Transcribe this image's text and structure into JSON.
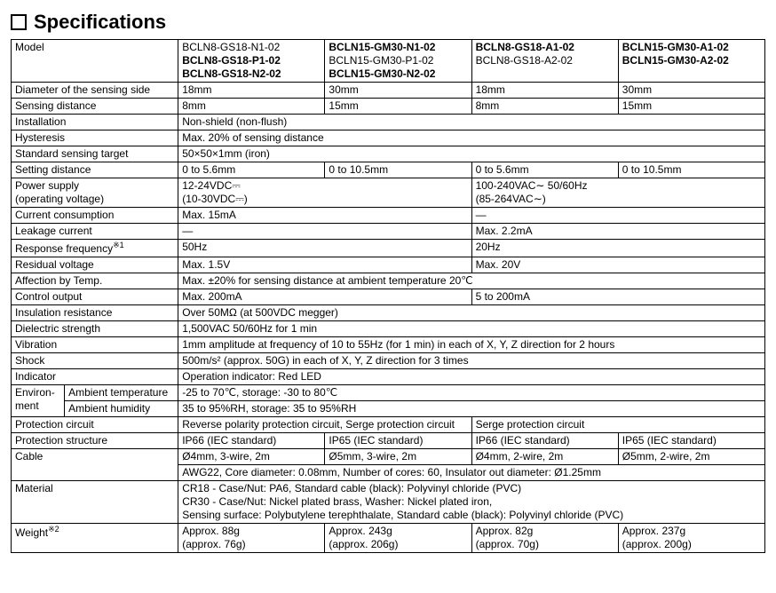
{
  "title": "Specifications",
  "headers": {
    "model_label": "Model",
    "col1_l1": "BCLN8-GS18-N1-02",
    "col1_l2": "BCLN8-GS18-P1-02",
    "col1_l3": "BCLN8-GS18-N2-02",
    "col2_l1": "BCLN15-GM30-N1-02",
    "col2_l2": "BCLN15-GM30-P1-02",
    "col2_l3": "BCLN15-GM30-N2-02",
    "col3_l1": "BCLN8-GS18-A1-02",
    "col3_l2": "BCLN8-GS18-A2-02",
    "col4_l1": "BCLN15-GM30-A1-02",
    "col4_l2": "BCLN15-GM30-A2-02"
  },
  "rows": {
    "diameter_label": "Diameter of the sensing side",
    "diameter_c1": "18mm",
    "diameter_c2": "30mm",
    "diameter_c3": "18mm",
    "diameter_c4": "30mm",
    "sensing_label": "Sensing distance",
    "sensing_c1": "8mm",
    "sensing_c2": "15mm",
    "sensing_c3": "8mm",
    "sensing_c4": "15mm",
    "install_label": "Installation",
    "install_val": "Non-shield (non-flush)",
    "hyst_label": "Hysteresis",
    "hyst_val": "Max. 20% of sensing distance",
    "target_label": "Standard sensing target",
    "target_val": "50×50×1mm (iron)",
    "setdist_label": "Setting distance",
    "setdist_c1": "0 to 5.6mm",
    "setdist_c2": "0 to 10.5mm",
    "setdist_c3": "0 to 5.6mm",
    "setdist_c4": "0 to 10.5mm",
    "power_label_l1": "Power supply",
    "power_label_l2": "(operating voltage)",
    "power_left_l1": "12-24VDC⎓",
    "power_left_l2": "(10-30VDC⎓)",
    "power_right_l1": "100-240VAC∼ 50/60Hz",
    "power_right_l2": "(85-264VAC∼)",
    "current_label": "Current consumption",
    "current_left": "Max. 15mA",
    "current_right": "—",
    "leak_label": "Leakage current",
    "leak_left": "—",
    "leak_right": "Max. 2.2mA",
    "resp_label_a": "Response frequency",
    "resp_sup": "※1",
    "resp_left": "50Hz",
    "resp_right": "20Hz",
    "residual_label": "Residual voltage",
    "residual_left": "Max. 1.5V",
    "residual_right": "Max. 20V",
    "temp_label": "Affection by Temp.",
    "temp_val": "Max. ±20% for sensing distance at ambient temperature 20℃",
    "ctrl_label": "Control output",
    "ctrl_left": "Max. 200mA",
    "ctrl_right": "5 to 200mA",
    "insul_label": "Insulation resistance",
    "insul_val": "Over 50MΩ (at 500VDC megger)",
    "diel_label": "Dielectric strength",
    "diel_val": "1,500VAC 50/60Hz for 1 min",
    "vib_label": "Vibration",
    "vib_val": "1mm amplitude at frequency of 10 to 55Hz (for 1 min) in each of X, Y, Z direction for 2 hours",
    "shock_label": "Shock",
    "shock_val": "500m/s² (approx. 50G) in each of X, Y, Z direction for 3 times",
    "ind_label": "Indicator",
    "ind_val": "Operation indicator: Red LED",
    "env_label": "Environ-\nment",
    "env_temp_label": "Ambient temperature",
    "env_temp_val": "-25 to 70℃, storage: -30 to 80℃",
    "env_hum_label": "Ambient humidity",
    "env_hum_val": "35 to 95%RH, storage: 35 to 95%RH",
    "protcir_label": "Protection circuit",
    "protcir_left": "Reverse polarity protection circuit, Serge protection circuit",
    "protcir_right": "Serge protection circuit",
    "protstr_label": "Protection structure",
    "protstr_c1": "IP66 (IEC standard)",
    "protstr_c2": "IP65 (IEC standard)",
    "protstr_c3": "IP66 (IEC standard)",
    "protstr_c4": "IP65 (IEC standard)",
    "cable_label": "Cable",
    "cable_c1": "Ø4mm, 3-wire, 2m",
    "cable_c2": "Ø5mm, 3-wire, 2m",
    "cable_c3": "Ø4mm, 2-wire, 2m",
    "cable_c4": "Ø5mm, 2-wire, 2m",
    "cable_row2": "AWG22, Core diameter: 0.08mm, Number of cores: 60, Insulator out diameter: Ø1.25mm",
    "mat_label": "Material",
    "mat_l1": "CR18 - Case/Nut: PA6, Standard cable (black): Polyvinyl chloride (PVC)",
    "mat_l2": "CR30 - Case/Nut: Nickel plated brass, Washer: Nickel plated iron,",
    "mat_l3": "Sensing surface: Polybutylene terephthalate, Standard cable (black): Polyvinyl chloride (PVC)",
    "weight_label_a": "Weight",
    "weight_sup": "※2",
    "weight_c1_l1": "Approx. 88g",
    "weight_c1_l2": "(approx. 76g)",
    "weight_c2_l1": "Approx. 243g",
    "weight_c2_l2": "(approx. 206g)",
    "weight_c3_l1": "Approx. 82g",
    "weight_c3_l2": "(approx. 70g)",
    "weight_c4_l1": "Approx. 237g",
    "weight_c4_l2": "(approx. 200g)"
  }
}
